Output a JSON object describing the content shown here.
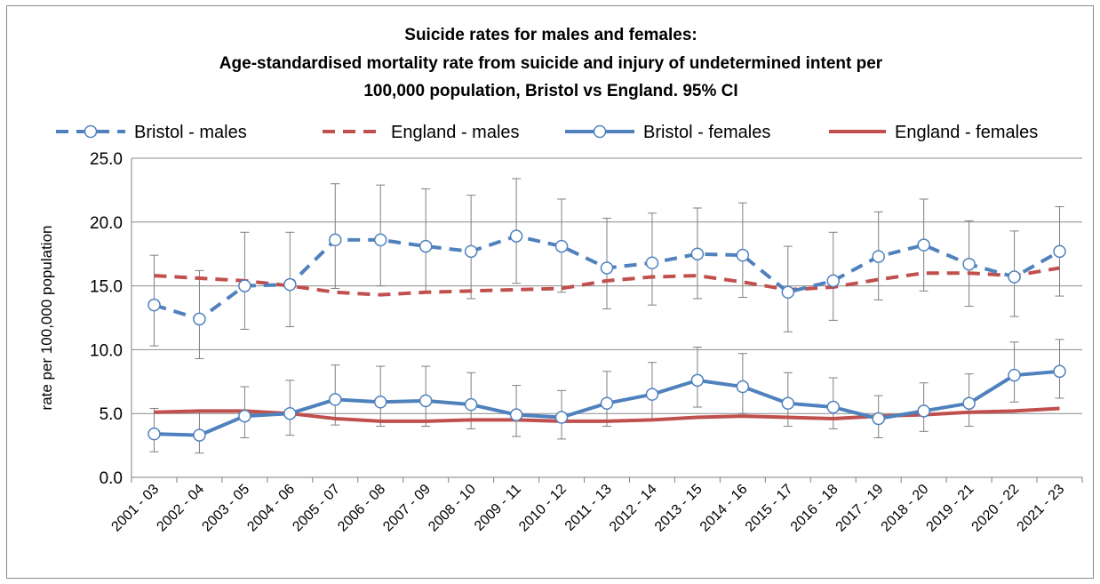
{
  "chart_data": {
    "type": "line",
    "title_lines": [
      "Suicide rates for males and females:",
      "Age-standardised mortality rate from suicide and injury of undetermined intent per",
      "100,000 population, Bristol vs England. 95% CI"
    ],
    "xlabel": "",
    "ylabel": "rate per 100,000 population",
    "ylim": [
      0,
      25
    ],
    "yticks": [
      "0.0",
      "5.0",
      "10.0",
      "15.0",
      "20.0",
      "25.0"
    ],
    "grid": "horizontal",
    "legend_position": "top",
    "categories": [
      "2001 - 03",
      "2002 - 04",
      "2003 - 05",
      "2004 - 06",
      "2005 - 07",
      "2006 - 08",
      "2007 - 09",
      "2008 - 10",
      "2009 - 11",
      "2010 - 12",
      "2011 - 13",
      "2012 - 14",
      "2013 - 15",
      "2014 - 16",
      "2015 - 17",
      "2016 - 18",
      "2017 - 19",
      "2018 - 20",
      "2019 - 21",
      "2020 - 22",
      "2021 - 23"
    ],
    "series": [
      {
        "name": "Bristol - males",
        "color": "#4f81bd",
        "style": "dashed",
        "markers": true,
        "values": [
          13.5,
          12.4,
          15.0,
          15.1,
          18.6,
          18.6,
          18.1,
          17.7,
          18.9,
          18.1,
          16.4,
          16.8,
          17.5,
          17.4,
          14.5,
          15.4,
          17.3,
          18.2,
          16.7,
          15.7,
          17.7
        ],
        "ci_low": [
          10.3,
          9.3,
          11.6,
          11.8,
          14.8,
          15.0,
          14.5,
          14.0,
          15.2,
          14.5,
          13.2,
          13.5,
          14.0,
          14.1,
          11.4,
          12.3,
          13.9,
          14.6,
          13.4,
          12.6,
          14.2
        ],
        "ci_high": [
          17.4,
          16.2,
          19.2,
          19.2,
          23.0,
          22.9,
          22.6,
          22.1,
          23.4,
          21.8,
          20.3,
          20.7,
          21.1,
          21.5,
          18.1,
          19.2,
          20.8,
          21.8,
          20.1,
          19.3,
          21.2
        ]
      },
      {
        "name": "England - males",
        "color": "#c0504d",
        "style": "dashed",
        "markers": false,
        "values": [
          15.8,
          15.6,
          15.4,
          15.0,
          14.5,
          14.3,
          14.5,
          14.6,
          14.7,
          14.8,
          15.4,
          15.7,
          15.8,
          15.3,
          14.7,
          14.9,
          15.5,
          16.0,
          16.0,
          15.8,
          16.4
        ]
      },
      {
        "name": "Bristol - females",
        "color": "#4f81bd",
        "style": "solid",
        "markers": true,
        "values": [
          3.4,
          3.3,
          4.8,
          5.0,
          6.1,
          5.9,
          6.0,
          5.7,
          4.9,
          4.7,
          5.8,
          6.5,
          7.6,
          7.1,
          5.8,
          5.5,
          4.6,
          5.2,
          5.8,
          8.0,
          8.3
        ],
        "ci_low": [
          2.0,
          1.9,
          3.1,
          3.3,
          4.1,
          4.0,
          4.0,
          3.8,
          3.2,
          3.0,
          4.0,
          4.5,
          5.5,
          5.0,
          4.0,
          3.8,
          3.1,
          3.6,
          4.0,
          5.9,
          6.2
        ],
        "ci_high": [
          5.4,
          5.2,
          7.1,
          7.6,
          8.8,
          8.7,
          8.7,
          8.2,
          7.2,
          6.8,
          8.3,
          9.0,
          10.2,
          9.7,
          8.2,
          7.8,
          6.4,
          7.4,
          8.1,
          10.6,
          10.8
        ]
      },
      {
        "name": "England - females",
        "color": "#c0504d",
        "style": "solid",
        "markers": false,
        "values": [
          5.1,
          5.2,
          5.2,
          5.0,
          4.6,
          4.4,
          4.4,
          4.5,
          4.5,
          4.4,
          4.4,
          4.5,
          4.7,
          4.8,
          4.7,
          4.6,
          4.8,
          4.9,
          5.1,
          5.2,
          5.4
        ]
      }
    ]
  }
}
